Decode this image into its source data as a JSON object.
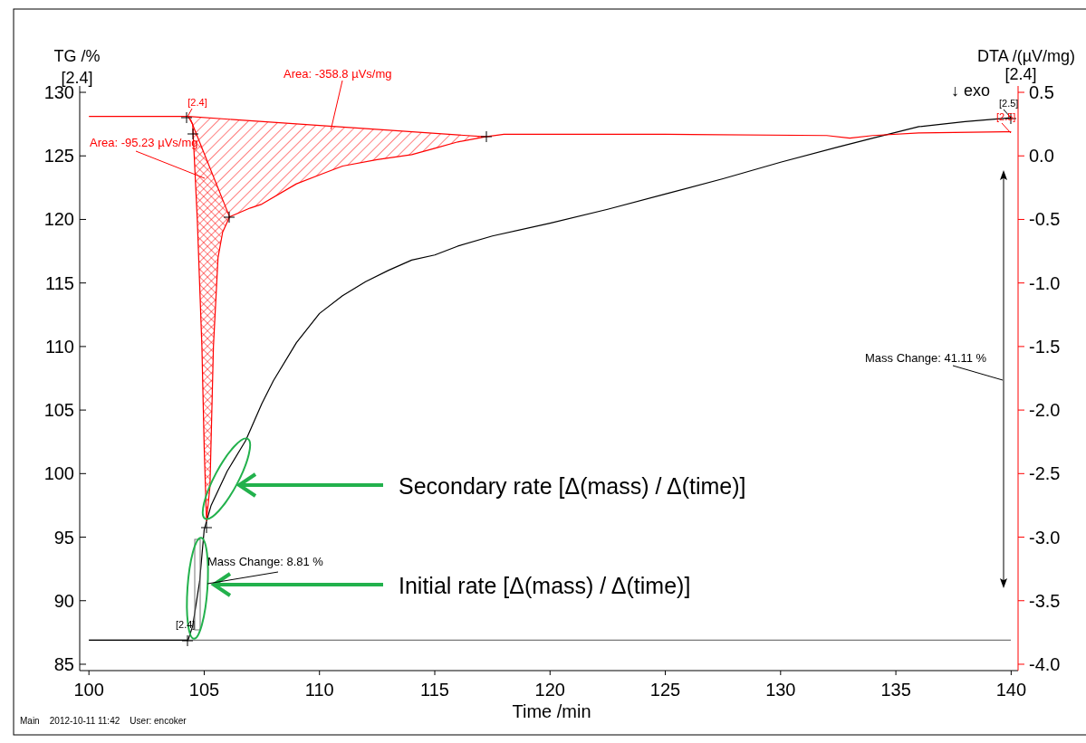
{
  "chart_data": {
    "type": "line",
    "xlabel": "Time /min",
    "ylabel": "TG /%",
    "y2label": "DTA /(µV/mg)",
    "xlim": [
      99.6,
      140.3
    ],
    "xticks": [
      100,
      105,
      110,
      115,
      120,
      125,
      130,
      135,
      140
    ],
    "ylim": [
      84.5,
      130.5
    ],
    "yticks": [
      85,
      90,
      95,
      100,
      105,
      110,
      115,
      120,
      125,
      130
    ],
    "y2lim": [
      -4.05,
      0.55
    ],
    "y2ticks": [
      {
        "value": -4.0,
        "label": "-4.0"
      },
      {
        "value": -3.5,
        "label": "-3.5"
      },
      {
        "value": -3.0,
        "label": "-3.0"
      },
      {
        "value": -2.5,
        "label": "-2.5"
      },
      {
        "value": -2.0,
        "label": "-2.0"
      },
      {
        "value": -1.5,
        "label": "-1.5"
      },
      {
        "value": -1.0,
        "label": "-1.0"
      },
      {
        "value": -0.5,
        "label": "-0.5"
      },
      {
        "value": 0.0,
        "label": "0.0"
      },
      {
        "value": 0.5,
        "label": "0.5"
      }
    ],
    "grid": false,
    "line_style": "solid",
    "marker": "none",
    "series": [
      {
        "color": "#000000",
        "x": [
          100,
          104.3,
          104.5,
          104.8,
          105.0,
          105.3,
          106,
          106.8,
          107.5,
          108,
          109,
          110,
          111,
          112,
          113,
          114,
          115,
          116,
          117.5,
          120,
          122.5,
          125,
          127.5,
          130,
          132.5,
          134,
          136,
          138,
          140
        ],
        "values": [
          86.9,
          86.9,
          88,
          91.5,
          95.6,
          97.5,
          100.2,
          102.6,
          105.5,
          107.3,
          110.3,
          112.6,
          114.0,
          115.1,
          116.0,
          116.8,
          117.2,
          117.9,
          118.7,
          119.7,
          120.8,
          122.0,
          123.2,
          124.5,
          125.7,
          126.4,
          127.3,
          127.7,
          128.0
        ]
      },
      {
        "color": "#ff0000",
        "axis": "y2",
        "x": [
          100,
          104.3,
          104.5,
          104.7,
          104.9,
          105.0,
          105.1,
          105.25,
          105.4,
          105.6,
          105.8,
          106.1,
          107,
          107.5,
          109,
          110,
          111,
          112.5,
          114,
          115,
          116,
          117.2,
          118,
          125,
          132,
          133,
          134,
          136,
          139.7,
          140
        ],
        "values": [
          0.31,
          0.31,
          0.25,
          -0.5,
          -1.5,
          -2.3,
          -2.87,
          -2.6,
          -1.5,
          -0.8,
          -0.6,
          -0.48,
          -0.41,
          -0.38,
          -0.22,
          -0.15,
          -0.08,
          -0.03,
          0.01,
          0.06,
          0.11,
          0.15,
          0.17,
          0.17,
          0.16,
          0.14,
          0.16,
          0.18,
          0.19,
          0.19
        ]
      },
      {
        "color": "#ff0000",
        "type": "line",
        "axis": "y2",
        "x": [
          104.3,
          117.2
        ],
        "values": [
          0.31,
          0.15
        ]
      },
      {
        "color": "#ff0000",
        "type": "line",
        "axis": "y2",
        "x": [
          104.4,
          106.1
        ],
        "values": [
          0.29,
          -0.48
        ]
      }
    ],
    "ref_lines": [
      {
        "axis": "y",
        "value": 86.9,
        "color": "#555555"
      }
    ],
    "annotations": [
      "[2.4]",
      "[2.4]",
      "↓ exo",
      "[2.4]",
      {
        "text": "Area: -358.8 µVs/mg",
        "x": 110.5,
        "y": 127.1
      },
      "Area: -95.23 µVs/mg",
      "[2.5]",
      "[2.5]",
      "Mass Change: 41.11 %",
      "Mass Change: 8.81 %",
      "[2.4]",
      "Secondary rate [Δ(mass) / Δ(time)]",
      "Initial rate [Δ(mass) / Δ(time)]",
      "Main    2012-10-11 11:42    User: encoker"
    ]
  }
}
